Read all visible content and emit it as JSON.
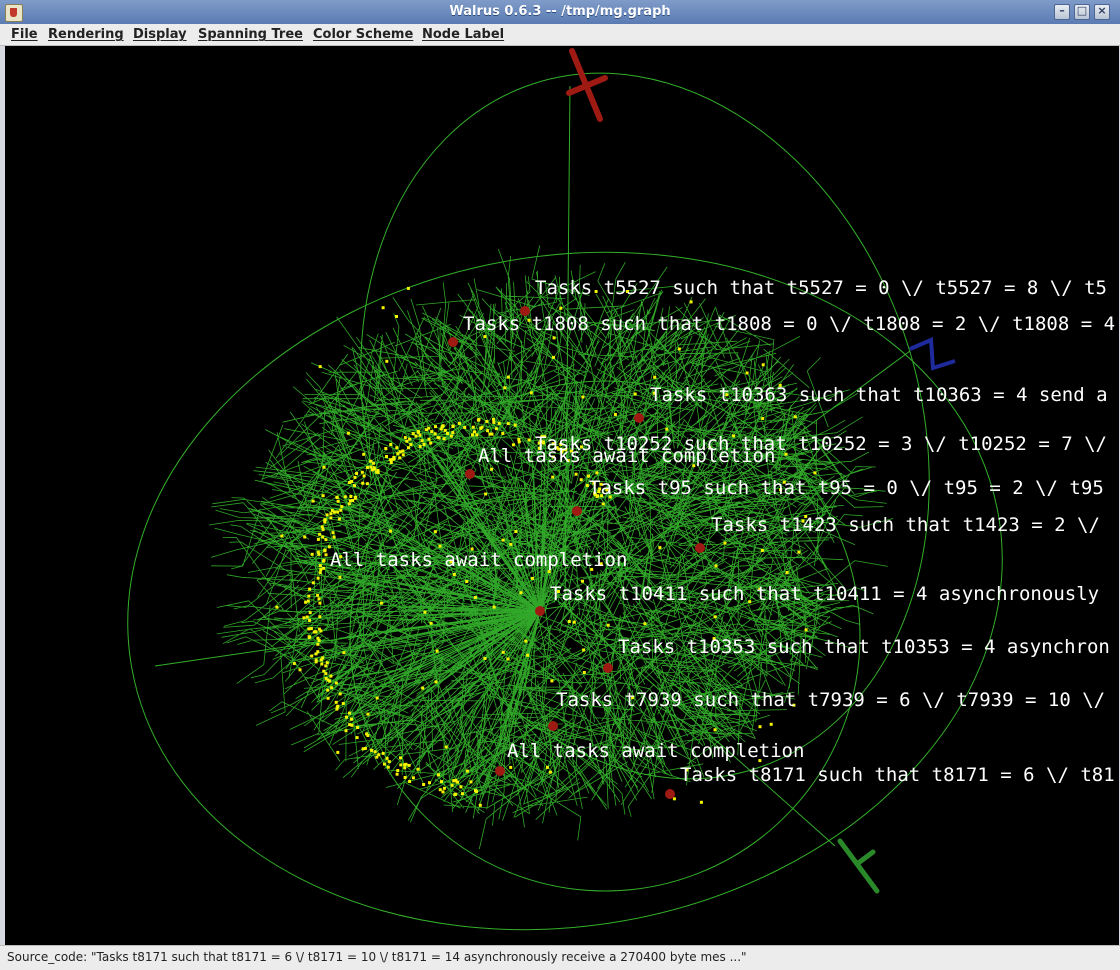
{
  "window": {
    "title": "Walrus 0.6.3 -- /tmp/mg.graph"
  },
  "menu": {
    "items": [
      "File",
      "Rendering",
      "Display",
      "Spanning Tree",
      "Color Scheme",
      "Node Label"
    ]
  },
  "labels": [
    "Tasks t5527 such that t5527 = 0 \\/ t5527 = 8 \\/ t5",
    "Tasks t1808 such that t1808 = 0 \\/ t1808 = 2 \\/ t1808 = 4",
    "Tasks t10363 such that t10363 = 4 send a",
    "Tasks t10252 such that t10252 = 3 \\/ t10252 = 7 \\/",
    "All tasks await completion",
    "Tasks t95 such that t95 = 0 \\/ t95 = 2 \\/ t95",
    "Tasks t1423 such that t1423 = 2 \\/",
    "All tasks await completion",
    "Tasks t10411 such that t10411 = 4 asynchronously",
    "Tasks t10353 such that t10353 = 4 asynchron",
    "Tasks t7939 such that t7939 = 6 \\/ t7939 = 10 \\/",
    "All tasks await completion",
    "Tasks t8171 such that t8171 = 6 \\/ t81"
  ],
  "status": {
    "text": "Source_code: \"Tasks t8171 such that t8171 = 6 \\/ t8171 = 10 \\/ t8171 = 14 asynchronously receive a 270400 byte mes ...\""
  },
  "colors": {
    "edge": "#33b02a",
    "node": "#f5f500",
    "highlight": "#a01a14",
    "axis_blue": "#1f2a9c",
    "axis_green": "#2a8a2a",
    "background": "#000000"
  }
}
